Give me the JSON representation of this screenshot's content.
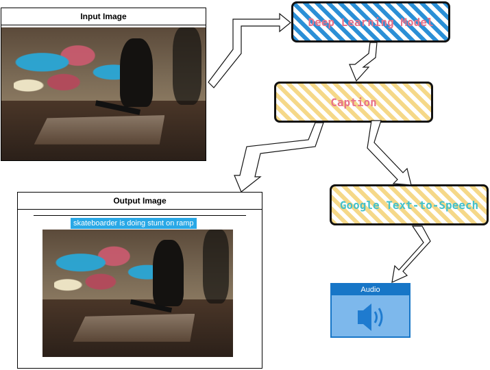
{
  "input_panel": {
    "title": "Input Image"
  },
  "output_panel": {
    "title": "Output Image",
    "caption": "skateboarder is doing stunt on ramp"
  },
  "nodes": {
    "model": "Deep Learning Model",
    "caption": "Caption",
    "tts": "Google Text-to-Speech",
    "audio": "Audio"
  },
  "icons": {
    "audio": "speaker-icon"
  },
  "colors": {
    "blue_hatch": "#2b8fd6",
    "yellow_hatch": "#f5d888",
    "pink_text": "#e8738a",
    "teal_text": "#45c1c9",
    "audio_header": "#1776c7",
    "audio_body": "#7db8ec",
    "caption_bg": "#29a8e6"
  }
}
